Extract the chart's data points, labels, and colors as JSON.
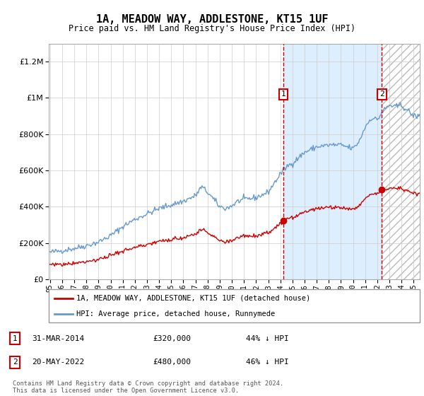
{
  "title": "1A, MEADOW WAY, ADDLESTONE, KT15 1UF",
  "subtitle": "Price paid vs. HM Land Registry's House Price Index (HPI)",
  "legend_line1": "1A, MEADOW WAY, ADDLESTONE, KT15 1UF (detached house)",
  "legend_line2": "HPI: Average price, detached house, Runnymede",
  "sale1_label": "31-MAR-2014",
  "sale1_price": 320000,
  "sale1_pct": "44% ↓ HPI",
  "sale2_label": "20-MAY-2022",
  "sale2_price": 480000,
  "sale2_pct": "46% ↓ HPI",
  "footer": "Contains HM Land Registry data © Crown copyright and database right 2024.\nThis data is licensed under the Open Government Licence v3.0.",
  "ylim": [
    0,
    1300000
  ],
  "yticks": [
    0,
    200000,
    400000,
    600000,
    800000,
    1000000,
    1200000
  ],
  "ytick_labels": [
    "£0",
    "£200K",
    "£400K",
    "£600K",
    "£800K",
    "£1M",
    "£1.2M"
  ],
  "red_color": "#cc0000",
  "blue_color": "#6699cc",
  "shade_color": "#ddeeff",
  "grid_color": "#cccccc",
  "hpi_anchors_x": [
    1995.0,
    1996.0,
    1997.0,
    1998.0,
    1999.0,
    2000.0,
    2001.0,
    2002.0,
    2003.0,
    2004.0,
    2005.0,
    2006.0,
    2007.0,
    2007.5,
    2008.0,
    2008.5,
    2009.0,
    2009.5,
    2010.0,
    2010.5,
    2011.0,
    2012.0,
    2013.0,
    2013.5,
    2014.0,
    2014.5,
    2015.0,
    2016.0,
    2017.0,
    2018.0,
    2019.0,
    2019.5,
    2020.0,
    2020.5,
    2021.0,
    2021.5,
    2022.0,
    2022.5,
    2023.0,
    2023.5,
    2024.0,
    2025.0
  ],
  "hpi_anchors_y": [
    148000,
    158000,
    170000,
    185000,
    205000,
    240000,
    290000,
    330000,
    360000,
    390000,
    410000,
    430000,
    460000,
    510000,
    480000,
    440000,
    400000,
    390000,
    405000,
    430000,
    440000,
    450000,
    480000,
    530000,
    580000,
    620000,
    640000,
    700000,
    730000,
    740000,
    740000,
    730000,
    720000,
    760000,
    840000,
    890000,
    880000,
    930000,
    960000,
    950000,
    960000,
    900000
  ],
  "sale1_year": 2014.25,
  "sale2_year": 2022.375,
  "xstart": 1995.0,
  "xend": 2025.5
}
